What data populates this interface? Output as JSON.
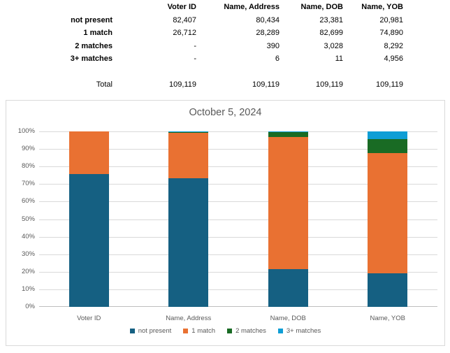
{
  "table": {
    "corner": "",
    "columns": [
      "Voter ID",
      "Name, Address",
      "Name, DOB",
      "Name, YOB"
    ],
    "rows": [
      {
        "label": "not present",
        "values": [
          "82,407",
          "80,434",
          "23,381",
          "20,981"
        ]
      },
      {
        "label": "1 match",
        "values": [
          "26,712",
          "28,289",
          "82,699",
          "74,890"
        ]
      },
      {
        "label": "2 matches",
        "values": [
          "-",
          "390",
          "3,028",
          "8,292"
        ]
      },
      {
        "label": "3+ matches",
        "values": [
          "-",
          "6",
          "11",
          "4,956"
        ]
      }
    ],
    "total_row": {
      "label": "Total",
      "values": [
        "109,119",
        "109,119",
        "109,119",
        "109,119"
      ]
    }
  },
  "chart_data": {
    "type": "bar",
    "subtype": "100-percent-stacked-column",
    "title": "October 5, 2024",
    "categories": [
      "Voter ID",
      "Name, Address",
      "Name, DOB",
      "Name, YOB"
    ],
    "series": [
      {
        "name": "not present",
        "color": "#156082",
        "values": [
          82407,
          80434,
          23381,
          20981
        ]
      },
      {
        "name": "1 match",
        "color": "#E97132",
        "values": [
          26712,
          28289,
          82699,
          74890
        ]
      },
      {
        "name": "2 matches",
        "color": "#196B24",
        "values": [
          0,
          390,
          3028,
          8292
        ]
      },
      {
        "name": "3+ matches",
        "color": "#0F9ED5",
        "values": [
          0,
          6,
          11,
          4956
        ]
      }
    ],
    "column_total": 109119,
    "y_axis": {
      "ticks": [
        "0%",
        "10%",
        "20%",
        "30%",
        "40%",
        "50%",
        "60%",
        "70%",
        "80%",
        "90%",
        "100%"
      ],
      "min": 0,
      "max": 100
    },
    "grid": true,
    "legend_position": "bottom"
  },
  "style_colors": {
    "chart_text": "#595959",
    "gridline": "#D9D9D9",
    "axis_line": "#BFBFBF",
    "chart_border": "#D9D9D9"
  }
}
